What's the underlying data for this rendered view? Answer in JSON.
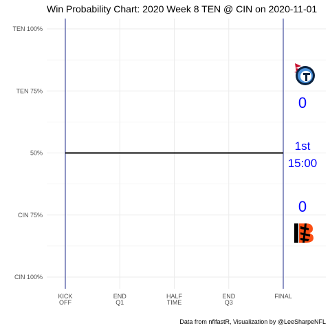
{
  "chart_data": {
    "type": "line",
    "title": "Win Probability Chart: 2020 Week 8 TEN @ CIN on 2020-11-01",
    "xlabel": "",
    "ylabel": "",
    "y_ticks": [
      {
        "value": 100,
        "label": "CIN 100%"
      },
      {
        "value": 75,
        "label": "CIN 75%"
      },
      {
        "value": 50,
        "label": "50%"
      },
      {
        "value": 75,
        "label": "TEN 75%",
        "side": "TEN"
      },
      {
        "value": 100,
        "label": "TEN 100%",
        "side": "TEN"
      }
    ],
    "ylim_home_pct": [
      0,
      100
    ],
    "x_ticks": [
      {
        "value": 0,
        "label": [
          "KICK",
          "OFF"
        ]
      },
      {
        "value": 0.25,
        "label": [
          "END",
          "Q1"
        ]
      },
      {
        "value": 0.5,
        "label": [
          "HALF",
          "TIME"
        ]
      },
      {
        "value": 0.75,
        "label": [
          "END",
          "Q3"
        ]
      },
      {
        "value": 1,
        "label": [
          "FINAL"
        ]
      }
    ],
    "xlim": [
      0,
      1
    ],
    "series": [
      {
        "x": [
          0,
          1
        ],
        "y": [
          50,
          50
        ],
        "color": "#000000"
      }
    ],
    "grid": true,
    "away_team": {
      "abbr": "TEN",
      "score": "0",
      "color": "#0000ff"
    },
    "home_team": {
      "abbr": "CIN",
      "score": "0",
      "color": "#0000ff"
    },
    "game_clock": {
      "quarter": "1st",
      "time": "15:00",
      "color": "#0000ff"
    },
    "caption": "Data from nflfastR, Visualization by @LeeSharpeNFL",
    "colors": {
      "bounds": "#1e2a8a",
      "grid": "#ebebeb",
      "titans_navy": "#0c2340",
      "titans_blue": "#4b92db",
      "titans_red": "#c8102e",
      "bengals_orange": "#fb4f14",
      "bengals_black": "#000000"
    }
  }
}
